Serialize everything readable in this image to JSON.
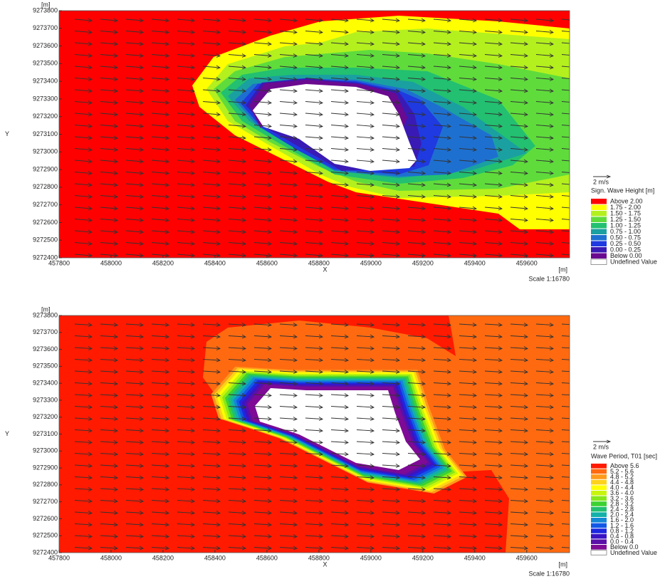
{
  "chart_data": [
    {
      "type": "contour",
      "y_unit": "[m]",
      "x_unit": "[m]",
      "xlabel": "X",
      "ylabel": "Y",
      "scale_text": "Scale 1:16780",
      "vector_scale": "2 m/s",
      "xlim": [
        457800,
        459765
      ],
      "ylim": [
        9272400,
        9273800
      ],
      "xticks": [
        457800,
        458000,
        458200,
        458400,
        458600,
        458800,
        459000,
        459200,
        459400,
        459600
      ],
      "yticks": [
        9272400,
        9272500,
        9272600,
        9272700,
        9272800,
        9272900,
        9273000,
        9273100,
        9273200,
        9273300,
        9273400,
        9273500,
        9273600,
        9273700,
        9273800
      ],
      "legend": {
        "title": "Sign. Wave Height [m]",
        "items": [
          {
            "label": "Above 2.00",
            "color": "#ff0000"
          },
          {
            "label": "1.75 - 2.00",
            "color": "#ffff00"
          },
          {
            "label": "1.50 - 1.75",
            "color": "#b4f01e"
          },
          {
            "label": "1.25 - 1.50",
            "color": "#5fdc3c"
          },
          {
            "label": "1.00 - 1.25",
            "color": "#22c070"
          },
          {
            "label": "0.75 - 1.00",
            "color": "#1aa0a0"
          },
          {
            "label": "0.50 - 0.75",
            "color": "#1e70d0"
          },
          {
            "label": "0.25 - 0.50",
            "color": "#1e3ae0"
          },
          {
            "label": "0.00 - 0.25",
            "color": "#3a1ab4"
          },
          {
            "label": "Below 0.00",
            "color": "#6a0a90"
          },
          {
            "label": "Undefined Value",
            "color": "#ffffff"
          }
        ]
      }
    },
    {
      "type": "contour",
      "y_unit": "[m]",
      "x_unit": "[m]",
      "xlabel": "X",
      "ylabel": "Y",
      "scale_text": "Scale 1:16780",
      "vector_scale": "2 m/s",
      "xlim": [
        457800,
        459765
      ],
      "ylim": [
        9272400,
        9273800
      ],
      "xticks": [
        457800,
        458000,
        458200,
        458400,
        458600,
        458800,
        459000,
        459200,
        459400,
        459600
      ],
      "yticks": [
        9272400,
        9272500,
        9272600,
        9272700,
        9272800,
        9272900,
        9273000,
        9273100,
        9273200,
        9273300,
        9273400,
        9273500,
        9273600,
        9273700,
        9273800
      ],
      "legend": {
        "title": "Wave Period, T01 [sec]",
        "items": [
          {
            "label": "Above 5.6",
            "color": "#ff1a00"
          },
          {
            "label": "5.2 - 5.6",
            "color": "#ff6a10"
          },
          {
            "label": "4.8 - 5.2",
            "color": "#ff9a1a"
          },
          {
            "label": "4.4 - 4.8",
            "color": "#ffd21a"
          },
          {
            "label": "4.0 - 4.4",
            "color": "#ffff00"
          },
          {
            "label": "3.6 - 4.0",
            "color": "#c8f50a"
          },
          {
            "label": "3.2 - 3.6",
            "color": "#86e81a"
          },
          {
            "label": "2.8 - 3.2",
            "color": "#3cd232"
          },
          {
            "label": "2.4 - 2.8",
            "color": "#20c070"
          },
          {
            "label": "2.0 - 2.4",
            "color": "#12b0a8"
          },
          {
            "label": "1.6 - 2.0",
            "color": "#1288d6"
          },
          {
            "label": "1.2 - 1.6",
            "color": "#1258e6"
          },
          {
            "label": "0.8 - 1.2",
            "color": "#1e28e0"
          },
          {
            "label": "0.4 - 0.8",
            "color": "#3a14c4"
          },
          {
            "label": "0.0 - 0.4",
            "color": "#5a10a8"
          },
          {
            "label": "Below 0.0",
            "color": "#7e0a96"
          },
          {
            "label": "Undefined Value",
            "color": "#ffffff"
          }
        ]
      }
    }
  ]
}
